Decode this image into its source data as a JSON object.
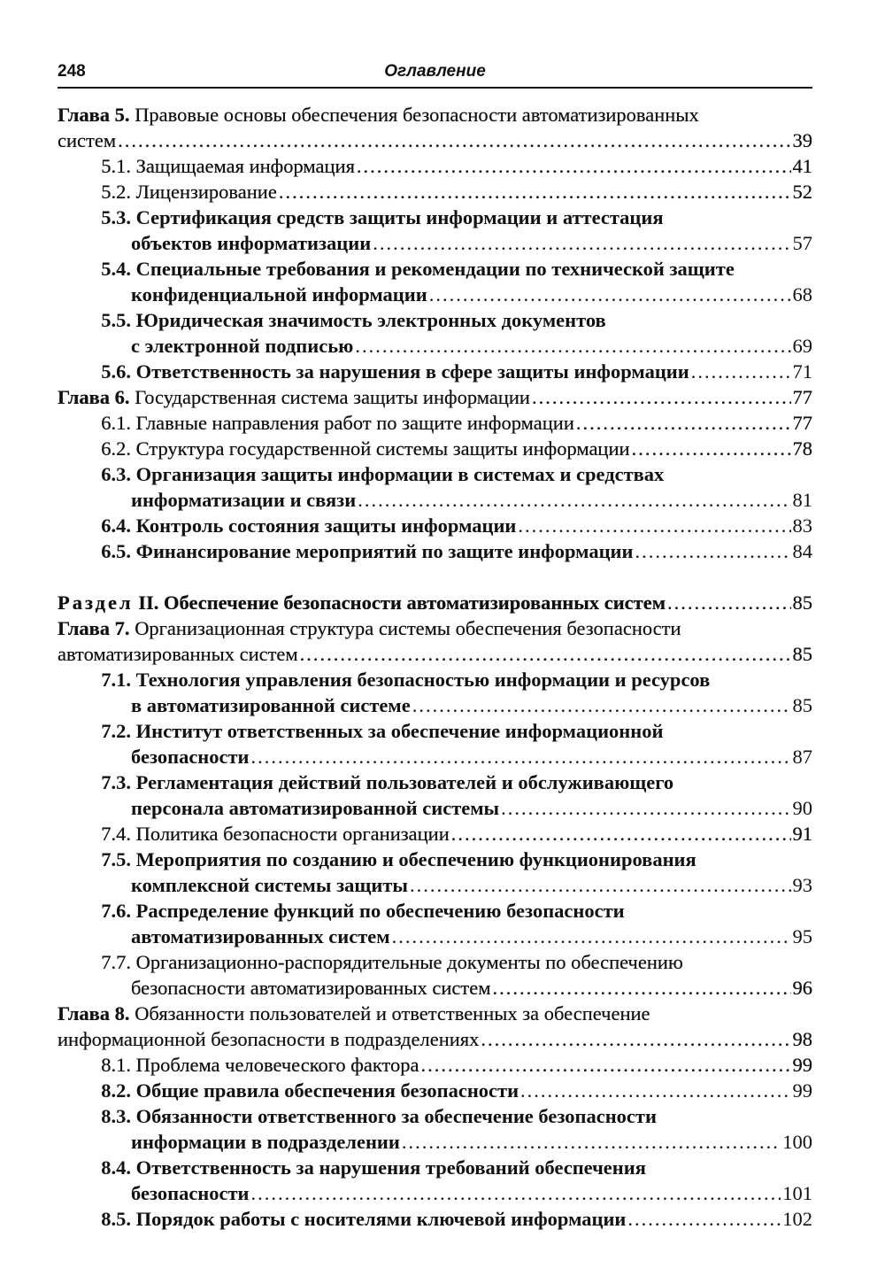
{
  "header": {
    "page_number": "248",
    "title": "Оглавление"
  },
  "toc": [
    {
      "kind": "chapter",
      "label": "Глава 5.",
      "lines": [
        "Правовые основы обеспечения безопасности автоматизированных",
        "систем"
      ],
      "page": "39"
    },
    {
      "kind": "sub",
      "light": true,
      "num": "5.1.",
      "lines": [
        "Защищаемая информация"
      ],
      "page": "41"
    },
    {
      "kind": "sub",
      "light": true,
      "num": "5.2.",
      "lines": [
        "Лицензирование"
      ],
      "page": "52"
    },
    {
      "kind": "sub",
      "num": "5.3.",
      "lines": [
        "Сертификация средств защиты информации и аттестация",
        "объектов информатизации"
      ],
      "page": "57"
    },
    {
      "kind": "sub",
      "num": "5.4.",
      "lines": [
        "Специальные требования и рекомендации по технической защите",
        "конфиденциальной информации"
      ],
      "page": "68"
    },
    {
      "kind": "sub",
      "num": "5.5.",
      "lines": [
        "Юридическая значимость электронных документов",
        "с электронной подписью"
      ],
      "page": "69"
    },
    {
      "kind": "sub",
      "num": "5.6.",
      "lines": [
        "Ответственность за нарушения в сфере защиты информации"
      ],
      "page": "71"
    },
    {
      "kind": "chapter",
      "label": "Глава 6.",
      "lines": [
        "Государственная система защиты информации"
      ],
      "page": "77"
    },
    {
      "kind": "sub",
      "light": true,
      "num": "6.1.",
      "lines": [
        "Главные направления работ по защите информации"
      ],
      "page": "77"
    },
    {
      "kind": "sub",
      "light": true,
      "num": "6.2.",
      "lines": [
        "Структура государственной системы защиты информации"
      ],
      "page": "78"
    },
    {
      "kind": "sub",
      "num": "6.3.",
      "lines": [
        "Организация защиты информации в системах и средствах",
        "информатизации и связи"
      ],
      "page": "81"
    },
    {
      "kind": "sub",
      "num": "6.4.",
      "lines": [
        "Контроль состояния защиты информации"
      ],
      "page": "83"
    },
    {
      "kind": "sub",
      "num": "6.5.",
      "lines": [
        "Финансирование мероприятий по защите информации"
      ],
      "page": "84"
    },
    {
      "kind": "gap"
    },
    {
      "kind": "part",
      "label": "Раздел",
      "lines": [
        "II. Обеспечение безопасности автоматизированных систем"
      ],
      "page": "85"
    },
    {
      "kind": "chapter",
      "label": "Глава 7.",
      "lines": [
        "Организационная структура системы обеспечения безопасности",
        "автоматизированных систем"
      ],
      "page": "85"
    },
    {
      "kind": "sub",
      "num": "7.1.",
      "lines": [
        "Технология управления безопасностью информации и ресурсов",
        "в автоматизированной системе"
      ],
      "page": "85"
    },
    {
      "kind": "sub",
      "num": "7.2.",
      "lines": [
        "Институт ответственных за обеспечение информационной",
        "безопасности"
      ],
      "page": "87"
    },
    {
      "kind": "sub",
      "num": "7.3.",
      "lines": [
        "Регламентация действий пользователей и обслуживающего",
        "персонала автоматизированной системы"
      ],
      "page": "90"
    },
    {
      "kind": "sub",
      "light": true,
      "num": "7.4.",
      "lines": [
        "Политика безопасности организации"
      ],
      "page": "91"
    },
    {
      "kind": "sub",
      "num": "7.5.",
      "lines": [
        "Мероприятия по созданию и обеспечению функционирования",
        "комплексной системы защиты"
      ],
      "page": "93"
    },
    {
      "kind": "sub",
      "num": "7.6.",
      "lines": [
        "Распределение функций по обеспечению безопасности",
        "автоматизированных систем"
      ],
      "page": "95"
    },
    {
      "kind": "sub",
      "light": true,
      "num": "7.7.",
      "lines": [
        "Организационно-распорядительные документы по обеспечению",
        "безопасности автоматизированных систем"
      ],
      "page": "96"
    },
    {
      "kind": "chapter",
      "label": "Глава 8.",
      "lines": [
        "Обязанности пользователей и ответственных за обеспечение",
        "информационной безопасности в подразделениях"
      ],
      "page": "98"
    },
    {
      "kind": "sub",
      "light": true,
      "num": "8.1.",
      "lines": [
        "Проблема человеческого фактора"
      ],
      "page": "99"
    },
    {
      "kind": "sub",
      "num": "8.2.",
      "lines": [
        "Общие правила обеспечения безопасности"
      ],
      "page": "99"
    },
    {
      "kind": "sub",
      "num": "8.3.",
      "lines": [
        "Обязанности ответственного за обеспечение безопасности",
        "информации в подразделении"
      ],
      "page": "100"
    },
    {
      "kind": "sub",
      "num": "8.4.",
      "lines": [
        "Ответственность за нарушения требований обеспечения",
        "безопасности"
      ],
      "page": "101"
    },
    {
      "kind": "sub",
      "num": "8.5.",
      "lines": [
        "Порядок работы с носителями ключевой информации"
      ],
      "page": "102"
    }
  ]
}
